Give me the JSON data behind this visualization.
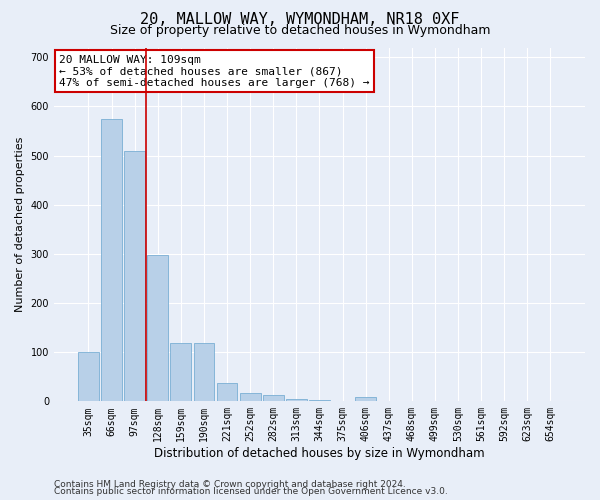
{
  "title": "20, MALLOW WAY, WYMONDHAM, NR18 0XF",
  "subtitle": "Size of property relative to detached houses in Wymondham",
  "xlabel": "Distribution of detached houses by size in Wymondham",
  "ylabel": "Number of detached properties",
  "categories": [
    "35sqm",
    "66sqm",
    "97sqm",
    "128sqm",
    "159sqm",
    "190sqm",
    "221sqm",
    "252sqm",
    "282sqm",
    "313sqm",
    "344sqm",
    "375sqm",
    "406sqm",
    "437sqm",
    "468sqm",
    "499sqm",
    "530sqm",
    "561sqm",
    "592sqm",
    "623sqm",
    "654sqm"
  ],
  "values": [
    100,
    575,
    510,
    297,
    118,
    118,
    38,
    17,
    12,
    5,
    2,
    0,
    8,
    0,
    0,
    0,
    0,
    0,
    0,
    0,
    0
  ],
  "bar_color": "#b8d0e8",
  "bar_edge_color": "#7aafd4",
  "vline_x": 2.5,
  "vline_color": "#cc0000",
  "annotation_text": "20 MALLOW WAY: 109sqm\n← 53% of detached houses are smaller (867)\n47% of semi-detached houses are larger (768) →",
  "annotation_box_color": "white",
  "annotation_box_edge_color": "#cc0000",
  "ylim": [
    0,
    720
  ],
  "yticks": [
    0,
    100,
    200,
    300,
    400,
    500,
    600,
    700
  ],
  "footer_line1": "Contains HM Land Registry data © Crown copyright and database right 2024.",
  "footer_line2": "Contains public sector information licensed under the Open Government Licence v3.0.",
  "bg_color": "#e8eef8",
  "plot_bg_color": "#e8eef8",
  "title_fontsize": 11,
  "subtitle_fontsize": 9,
  "xlabel_fontsize": 8.5,
  "ylabel_fontsize": 8,
  "tick_fontsize": 7,
  "footer_fontsize": 6.5,
  "annotation_fontsize": 8
}
